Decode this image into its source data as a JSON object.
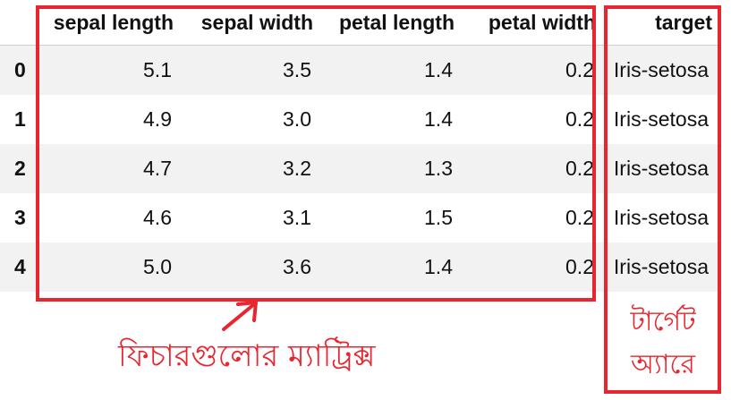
{
  "table": {
    "columns": [
      "sepal length",
      "sepal width",
      "petal length",
      "petal width",
      "target"
    ],
    "rows": [
      {
        "index": "0",
        "values": [
          "5.1",
          "3.5",
          "1.4",
          "0.2",
          "Iris-setosa"
        ]
      },
      {
        "index": "1",
        "values": [
          "4.9",
          "3.0",
          "1.4",
          "0.2",
          "Iris-setosa"
        ]
      },
      {
        "index": "2",
        "values": [
          "4.7",
          "3.2",
          "1.3",
          "0.2",
          "Iris-setosa"
        ]
      },
      {
        "index": "3",
        "values": [
          "4.6",
          "3.1",
          "1.5",
          "0.2",
          "Iris-setosa"
        ]
      },
      {
        "index": "4",
        "values": [
          "5.0",
          "3.6",
          "1.4",
          "0.2",
          "Iris-setosa"
        ]
      }
    ]
  },
  "annotations": {
    "features_label": "ফিচারগুলোর ম্যাট্রিক্স",
    "target_label_line1": "টার্গেট",
    "target_label_line2": "অ্যারে",
    "color": "#e8262f"
  }
}
